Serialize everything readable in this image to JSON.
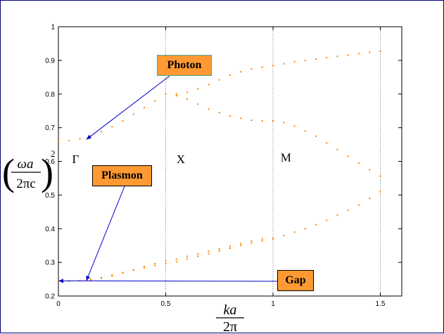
{
  "chart_data": {
    "type": "scatter",
    "xlim": [
      0,
      1.6
    ],
    "ylim": [
      0.2,
      1.0
    ],
    "xticks": [
      "0",
      "0.5",
      "1",
      "1.5"
    ],
    "yticks": [
      "0.2",
      "0.3",
      "0.4",
      "0.5",
      "0.6",
      "0.7",
      "0.8",
      "0.9",
      "1"
    ],
    "xtick_values": [
      0,
      0.5,
      1,
      1.5
    ],
    "ytick_values": [
      0.2,
      0.3,
      0.4,
      0.5,
      0.6,
      0.7,
      0.8,
      0.9,
      1.0
    ],
    "vlines": [
      0.5,
      1.0,
      1.5
    ],
    "grid": false,
    "xlabel": {
      "num": "ka",
      "den": "2π"
    },
    "ylabel": {
      "num": "ωa",
      "den": "2πc",
      "exp": "2"
    },
    "symmetry_labels": [
      {
        "text": "Γ",
        "x": 0.08,
        "y": 0.595
      },
      {
        "text": "X",
        "x": 0.57,
        "y": 0.595
      },
      {
        "text": "M",
        "x": 1.06,
        "y": 0.6
      }
    ],
    "callouts": [
      {
        "name": "photon",
        "text": "Photon",
        "fill": "#FF9933",
        "target": [
          0.13,
          0.665
        ]
      },
      {
        "name": "plasmon",
        "text": "Plasmon",
        "fill": "#FF9933",
        "target": [
          0.13,
          0.245
        ]
      },
      {
        "name": "gap",
        "text": "Gap",
        "fill": "#FF9933",
        "target": [
          0.0,
          0.245
        ]
      }
    ],
    "marker_color": "#FF8000",
    "arrow_color": "#0000CC",
    "series": [
      {
        "x": [
          0.0,
          0.05,
          0.1,
          0.15,
          0.2,
          0.25,
          0.3,
          0.35,
          0.4,
          0.45,
          0.5,
          0.55,
          0.6,
          0.65,
          0.7,
          0.75,
          0.8,
          0.85,
          0.9,
          0.95,
          1.0,
          1.05,
          1.1,
          1.15,
          1.2,
          1.25,
          1.3,
          1.35,
          1.4,
          1.45,
          1.5
        ],
        "y": [
          0.66,
          0.662,
          0.667,
          0.675,
          0.688,
          0.703,
          0.72,
          0.74,
          0.76,
          0.78,
          0.8,
          0.8,
          0.805,
          0.815,
          0.828,
          0.842,
          0.856,
          0.866,
          0.874,
          0.88,
          0.885,
          0.89,
          0.896,
          0.9,
          0.904,
          0.908,
          0.912,
          0.916,
          0.92,
          0.924,
          0.928
        ]
      },
      {
        "x": [
          0.5,
          0.55,
          0.6,
          0.65,
          0.7,
          0.75,
          0.8,
          0.85,
          0.9,
          0.95,
          1.0,
          1.05,
          1.1,
          1.15,
          1.2,
          1.25,
          1.3,
          1.35,
          1.4,
          1.45,
          1.5
        ],
        "y": [
          0.8,
          0.795,
          0.785,
          0.77,
          0.755,
          0.745,
          0.735,
          0.728,
          0.722,
          0.72,
          0.72,
          0.715,
          0.705,
          0.69,
          0.675,
          0.655,
          0.635,
          0.615,
          0.595,
          0.575,
          0.556
        ]
      },
      {
        "x": [
          0.0,
          0.05,
          0.1,
          0.15,
          0.2,
          0.25,
          0.3,
          0.35,
          0.4,
          0.45,
          0.5,
          0.55,
          0.6,
          0.65,
          0.7,
          0.75,
          0.8,
          0.85,
          0.9,
          0.95,
          1.0,
          1.05,
          1.1,
          1.15,
          1.2,
          1.25,
          1.3,
          1.35,
          1.4,
          1.45,
          1.5
        ],
        "y": [
          0.245,
          0.245,
          0.246,
          0.248,
          0.253,
          0.26,
          0.268,
          0.277,
          0.287,
          0.296,
          0.305,
          0.31,
          0.318,
          0.325,
          0.333,
          0.34,
          0.348,
          0.356,
          0.363,
          0.37,
          0.372,
          0.38,
          0.39,
          0.4,
          0.412,
          0.425,
          0.44,
          0.455,
          0.47,
          0.49,
          0.51
        ]
      },
      {
        "x": [
          0.15,
          0.2,
          0.25,
          0.3,
          0.35,
          0.4,
          0.45,
          0.5,
          0.55,
          0.6,
          0.65,
          0.7,
          0.75,
          0.8,
          0.85,
          0.9,
          0.95,
          1.0
        ],
        "y": [
          0.25,
          0.255,
          0.262,
          0.27,
          0.278,
          0.284,
          0.29,
          0.297,
          0.302,
          0.31,
          0.318,
          0.326,
          0.334,
          0.342,
          0.35,
          0.357,
          0.364,
          0.37
        ]
      }
    ]
  }
}
